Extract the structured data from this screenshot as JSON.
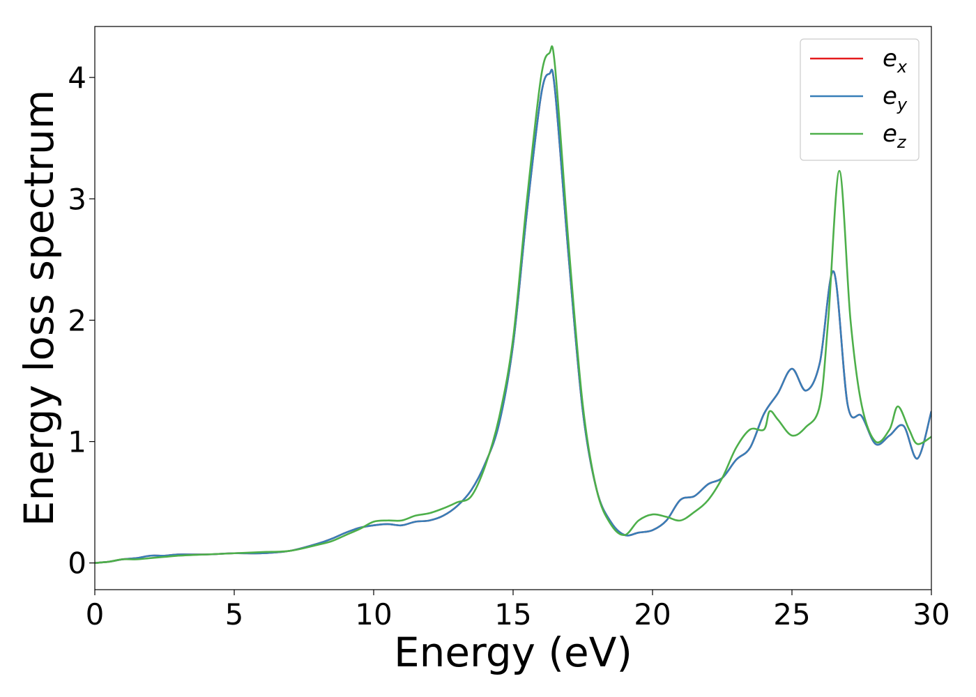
{
  "chart_data": {
    "type": "line",
    "xlabel": "Energy (eV)",
    "ylabel": "Energy loss spectrum",
    "xlim": [
      0,
      30
    ],
    "ylim": [
      -0.22,
      4.42
    ],
    "xticks": [
      0,
      5,
      10,
      15,
      20,
      25,
      30
    ],
    "yticks": [
      0,
      1,
      2,
      3,
      4
    ],
    "grid": false,
    "legend_position": "top-right",
    "series": [
      {
        "name": "e_x",
        "label_base": "e",
        "label_sub": "x",
        "color": "#e41a1c",
        "x": [
          0,
          0.5,
          1,
          1.5,
          2,
          2.5,
          3,
          4,
          5,
          6,
          7,
          8,
          8.5,
          9,
          9.5,
          10,
          10.5,
          11,
          11.5,
          12,
          12.5,
          13,
          13.5,
          14,
          14.5,
          15,
          15.5,
          16,
          16.3,
          16.5,
          17,
          17.5,
          18,
          18.5,
          19,
          19.5,
          20,
          20.5,
          21,
          21.5,
          22,
          22.5,
          23,
          23.5,
          24,
          24.5,
          25,
          25.5,
          26,
          26.5,
          27,
          27.5,
          28,
          28.5,
          29,
          29.5,
          30
        ],
        "y": [
          0.0,
          0.01,
          0.03,
          0.04,
          0.06,
          0.06,
          0.07,
          0.07,
          0.08,
          0.08,
          0.1,
          0.16,
          0.2,
          0.25,
          0.29,
          0.31,
          0.32,
          0.31,
          0.34,
          0.35,
          0.39,
          0.47,
          0.6,
          0.82,
          1.15,
          1.8,
          2.9,
          3.85,
          4.03,
          3.9,
          2.5,
          1.25,
          0.6,
          0.34,
          0.23,
          0.25,
          0.27,
          0.35,
          0.52,
          0.55,
          0.65,
          0.7,
          0.85,
          0.95,
          1.23,
          1.4,
          1.6,
          1.42,
          1.65,
          2.4,
          1.3,
          1.21,
          0.98,
          1.05,
          1.13,
          0.86,
          1.25
        ]
      },
      {
        "name": "e_y",
        "label_base": "e",
        "label_sub": "y",
        "color": "#377eb8",
        "x": [
          0,
          0.5,
          1,
          1.5,
          2,
          2.5,
          3,
          4,
          5,
          6,
          7,
          8,
          8.5,
          9,
          9.5,
          10,
          10.5,
          11,
          11.5,
          12,
          12.5,
          13,
          13.5,
          14,
          14.5,
          15,
          15.5,
          16,
          16.3,
          16.5,
          17,
          17.5,
          18,
          18.5,
          19,
          19.5,
          20,
          20.5,
          21,
          21.5,
          22,
          22.5,
          23,
          23.5,
          24,
          24.5,
          25,
          25.5,
          26,
          26.5,
          27,
          27.5,
          28,
          28.5,
          29,
          29.5,
          30
        ],
        "y": [
          0.0,
          0.01,
          0.03,
          0.04,
          0.06,
          0.06,
          0.07,
          0.07,
          0.08,
          0.08,
          0.1,
          0.16,
          0.2,
          0.25,
          0.29,
          0.31,
          0.32,
          0.31,
          0.34,
          0.35,
          0.39,
          0.47,
          0.6,
          0.82,
          1.15,
          1.8,
          2.9,
          3.85,
          4.03,
          3.9,
          2.5,
          1.25,
          0.6,
          0.34,
          0.23,
          0.25,
          0.27,
          0.35,
          0.52,
          0.55,
          0.65,
          0.7,
          0.85,
          0.95,
          1.23,
          1.4,
          1.6,
          1.42,
          1.65,
          2.4,
          1.3,
          1.21,
          0.98,
          1.05,
          1.13,
          0.86,
          1.25
        ]
      },
      {
        "name": "e_z",
        "label_base": "e",
        "label_sub": "z",
        "color": "#4daf4a",
        "x": [
          0,
          0.5,
          1,
          1.5,
          2,
          2.5,
          3,
          4,
          5,
          6,
          7,
          8,
          8.5,
          9,
          9.5,
          10,
          10.5,
          11,
          11.5,
          12,
          12.5,
          13,
          13.5,
          14,
          14.5,
          15,
          15.5,
          16,
          16.3,
          16.5,
          17,
          17.5,
          18,
          18.5,
          19,
          19.5,
          20,
          20.5,
          21,
          21.5,
          22,
          22.5,
          23,
          23.5,
          24,
          24.2,
          24.5,
          25,
          25.5,
          26,
          26.3,
          26.7,
          27.1,
          27.5,
          28,
          28.5,
          28.8,
          29.2,
          29.5,
          30
        ],
        "y": [
          0.0,
          0.01,
          0.03,
          0.03,
          0.04,
          0.05,
          0.06,
          0.07,
          0.08,
          0.09,
          0.1,
          0.15,
          0.18,
          0.23,
          0.28,
          0.34,
          0.35,
          0.35,
          0.39,
          0.41,
          0.45,
          0.5,
          0.55,
          0.8,
          1.2,
          1.85,
          3.0,
          4.0,
          4.2,
          4.1,
          2.6,
          1.3,
          0.6,
          0.32,
          0.23,
          0.35,
          0.4,
          0.38,
          0.35,
          0.42,
          0.52,
          0.7,
          0.95,
          1.1,
          1.1,
          1.25,
          1.18,
          1.05,
          1.12,
          1.3,
          2.0,
          3.23,
          2.0,
          1.3,
          1.0,
          1.1,
          1.29,
          1.1,
          0.98,
          1.04
        ]
      }
    ]
  }
}
